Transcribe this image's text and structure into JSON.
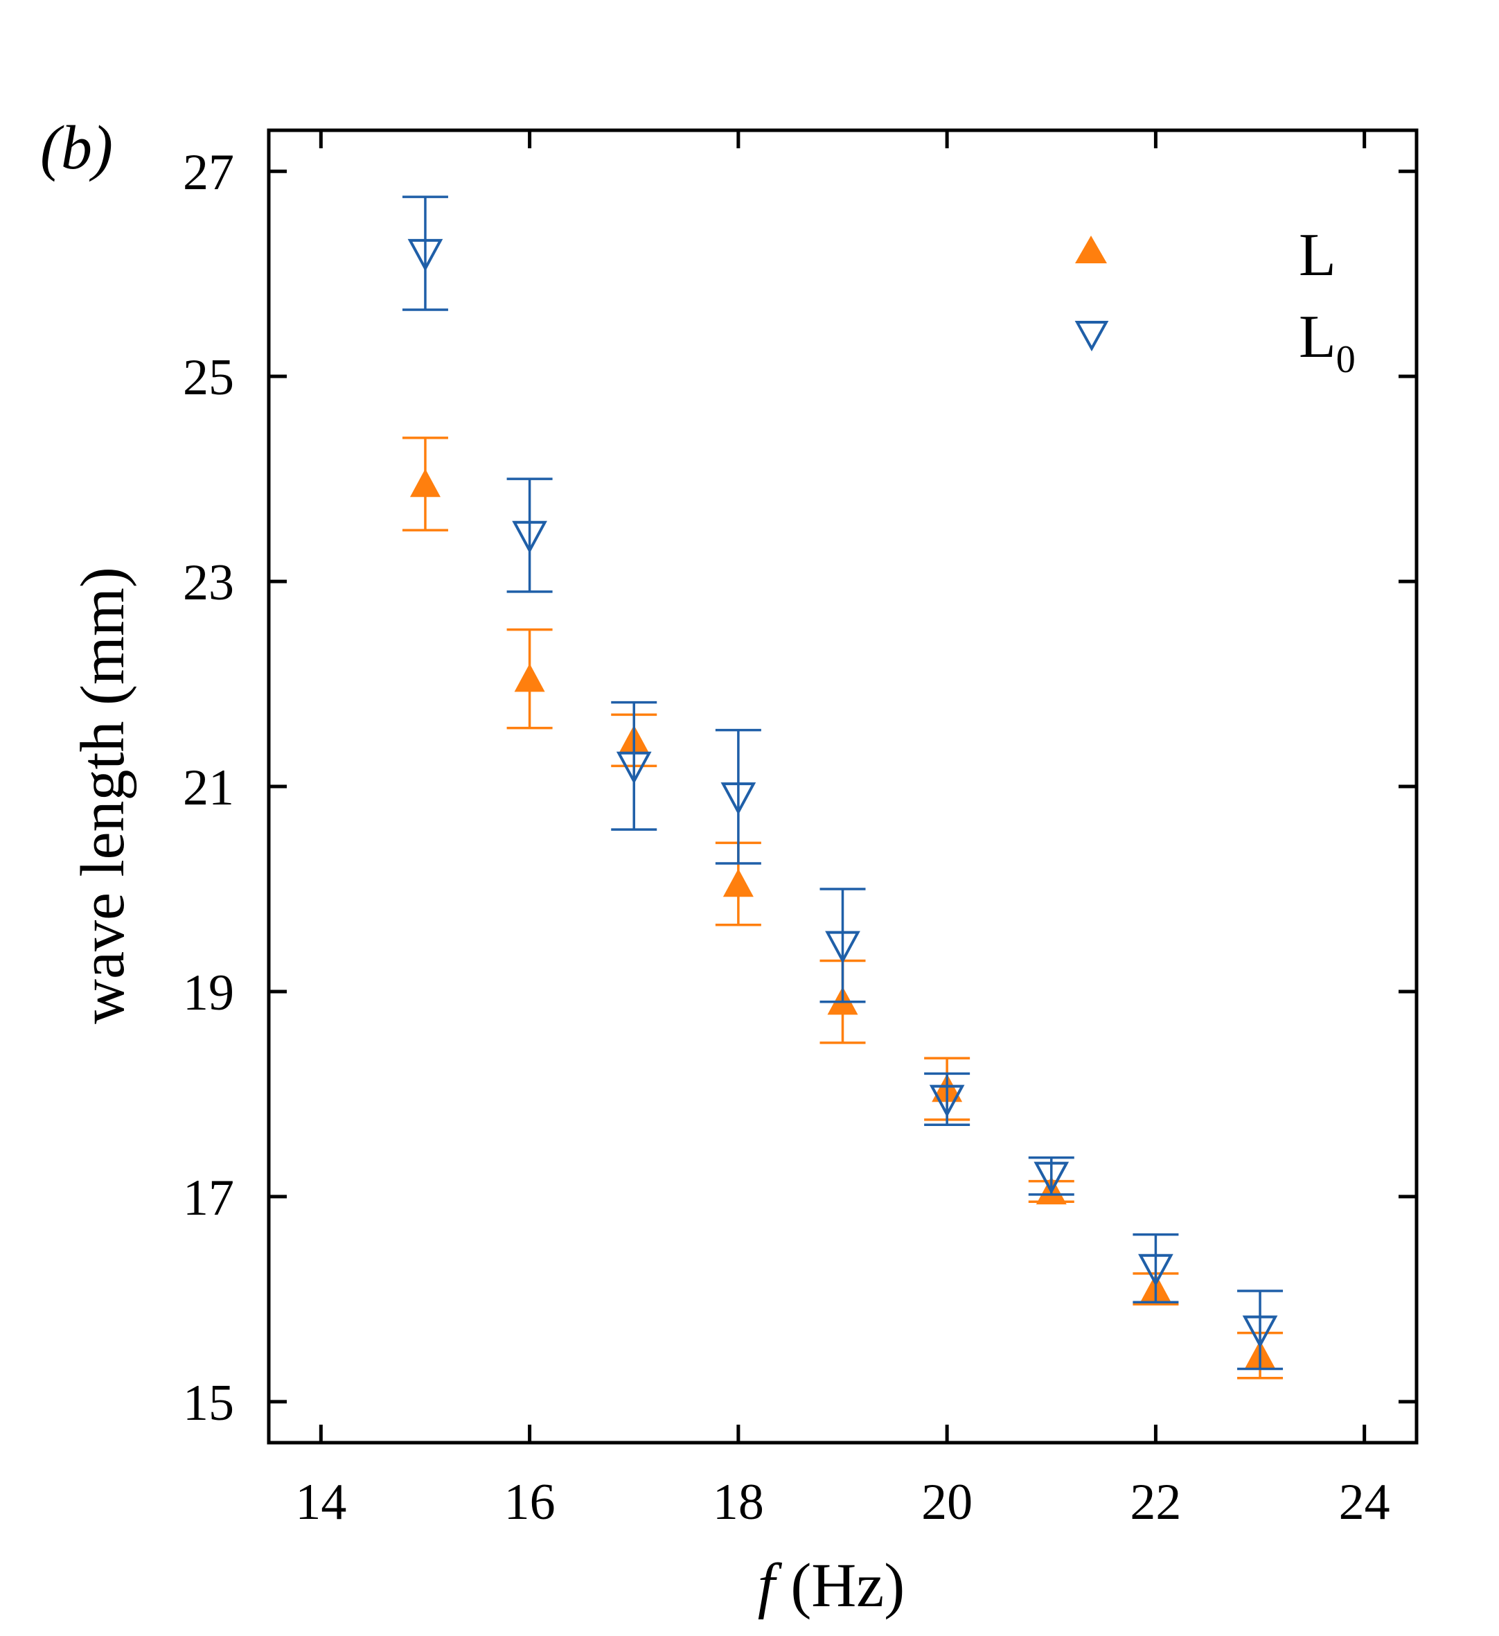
{
  "panel_label": "(b)",
  "colors": {
    "L": "#ff7f0e",
    "L0": "#1f5fa8",
    "axes": "#000000"
  },
  "chart_data": {
    "type": "scatter",
    "title": "",
    "xlabel_italic": "f",
    "xlabel_rest": " (Hz)",
    "ylabel": "wave length (mm)",
    "xlim": [
      13.5,
      24.5
    ],
    "ylim": [
      14.6,
      27.4
    ],
    "xticks": [
      14,
      16,
      18,
      20,
      22,
      24
    ],
    "yticks": [
      15,
      17,
      19,
      21,
      23,
      25,
      27
    ],
    "grid": false,
    "legend_position": "top-right",
    "series": [
      {
        "key": "L",
        "name": "L",
        "marker": "triangle-up-filled",
        "color": "#ff7f0e",
        "x": [
          15,
          16,
          17,
          18,
          19,
          20,
          21,
          22,
          23
        ],
        "y": [
          23.95,
          22.05,
          21.45,
          20.05,
          18.9,
          18.05,
          17.05,
          16.1,
          15.45
        ],
        "yerr": [
          0.45,
          0.48,
          0.25,
          0.4,
          0.4,
          0.3,
          0.1,
          0.15,
          0.22
        ]
      },
      {
        "key": "L0",
        "name": "L",
        "name_sub": "0",
        "marker": "triangle-down-open",
        "color": "#1f5fa8",
        "x": [
          15,
          16,
          17,
          18,
          19,
          20,
          21,
          22,
          23
        ],
        "y": [
          26.2,
          23.45,
          21.2,
          20.9,
          19.45,
          17.95,
          17.2,
          16.3,
          15.7
        ],
        "yerr": [
          0.55,
          0.55,
          0.62,
          0.65,
          0.55,
          0.25,
          0.18,
          0.33,
          0.38
        ]
      }
    ]
  }
}
